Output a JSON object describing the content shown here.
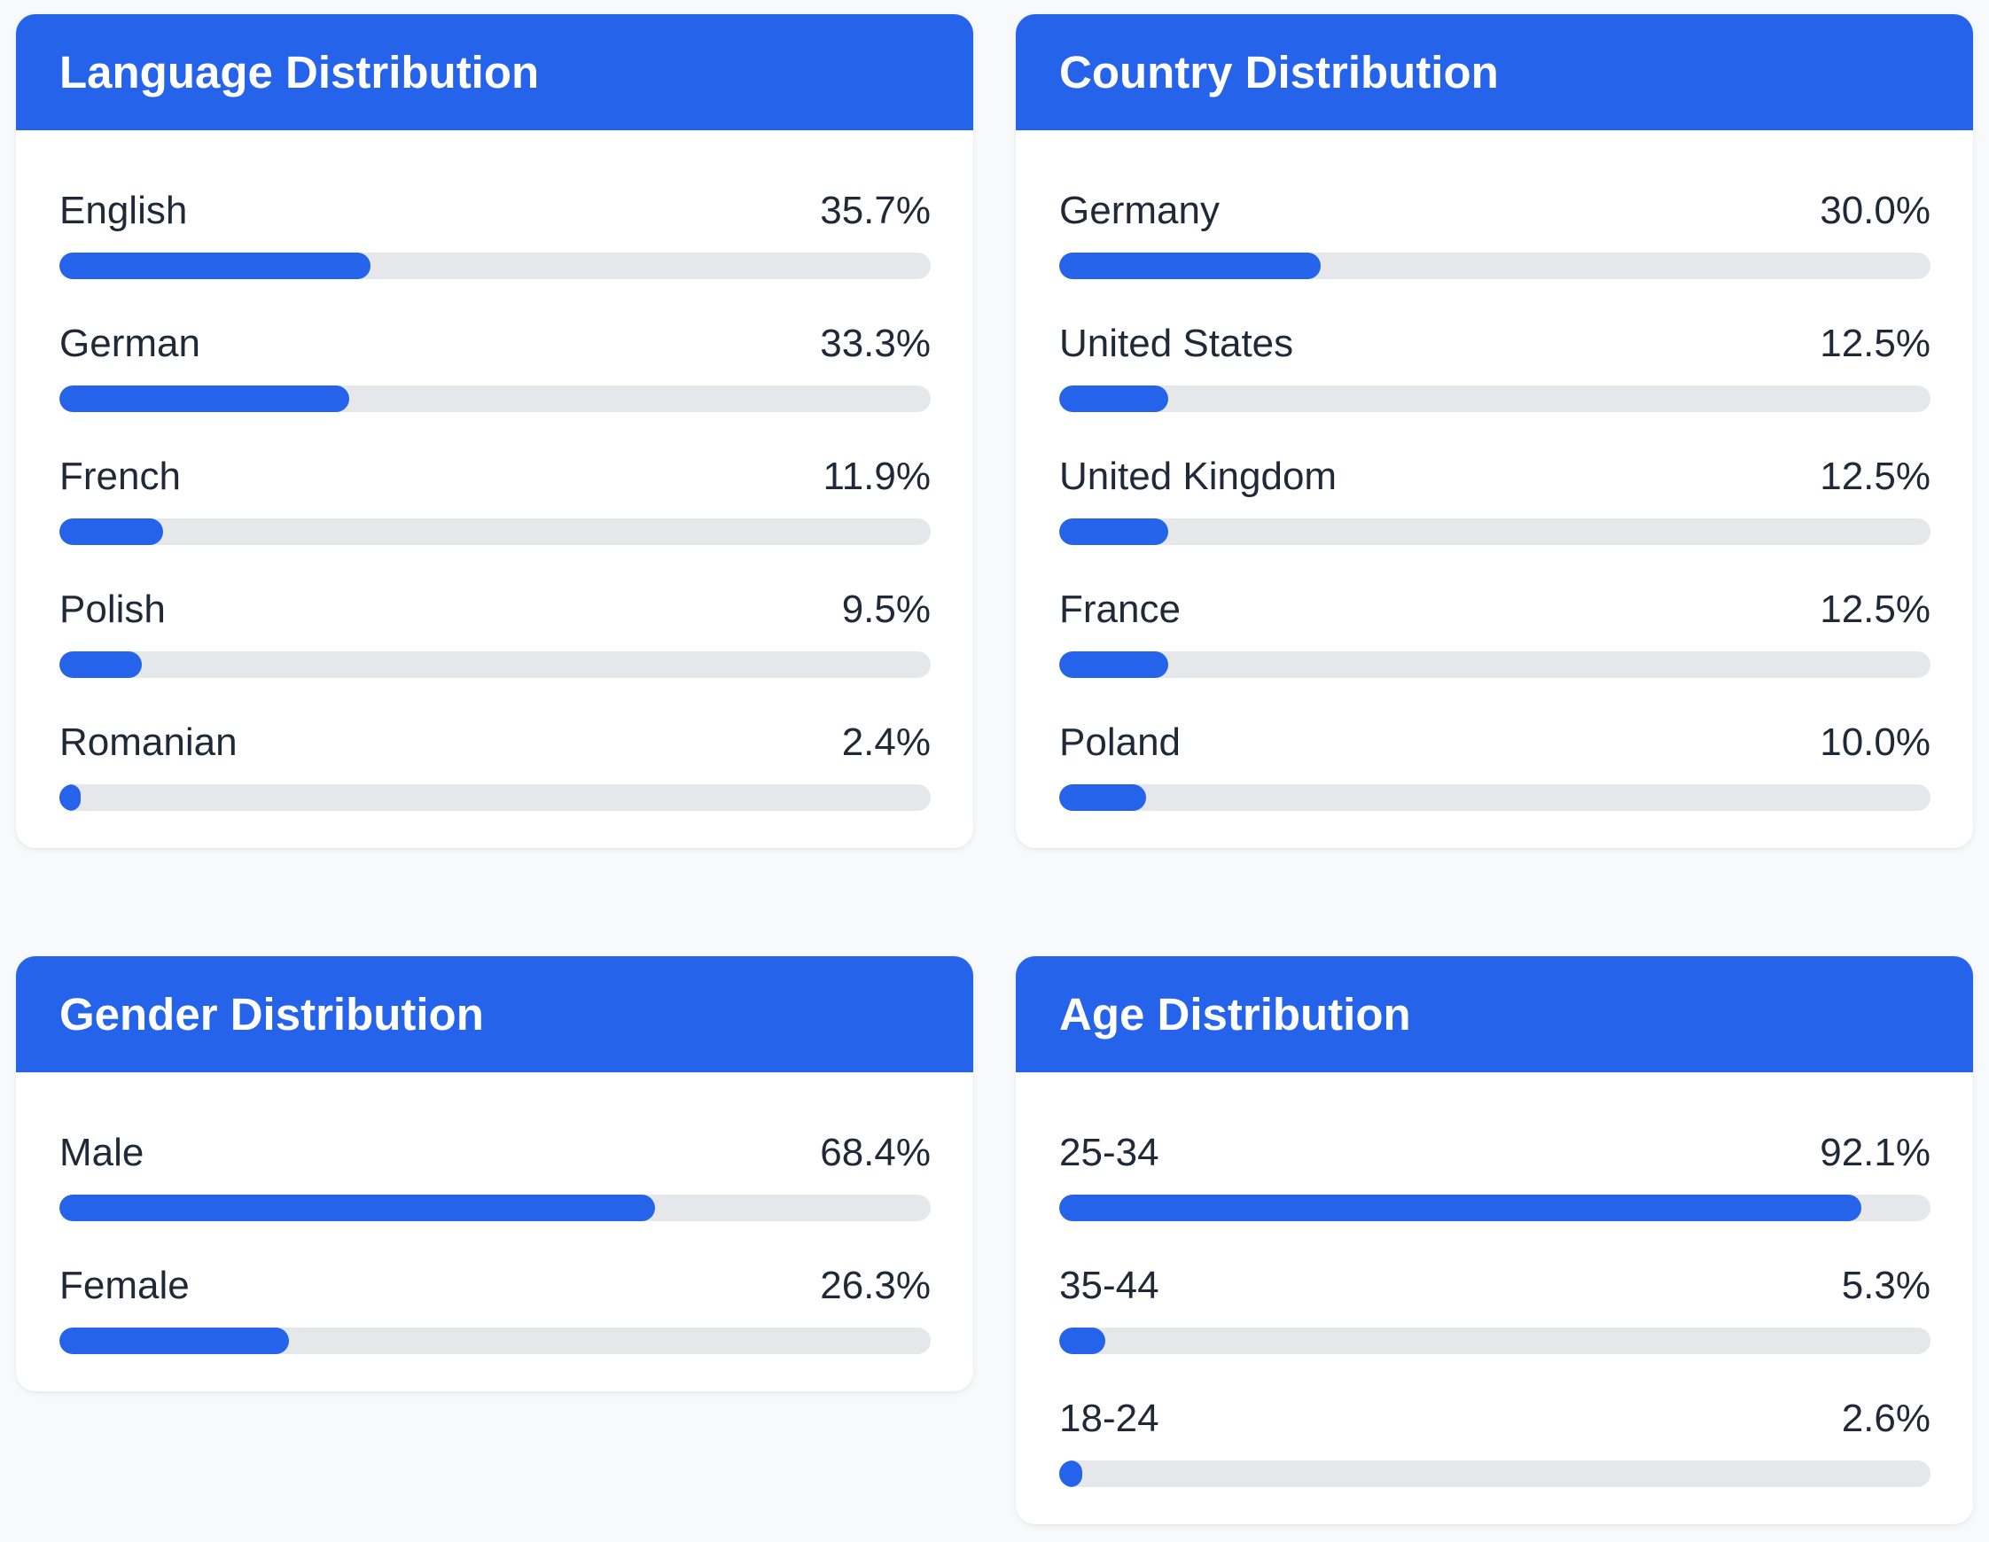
{
  "colors": {
    "accent": "#2563eb",
    "track": "#e5e7eb",
    "background": "#f8f9fb",
    "card": "#ffffff",
    "text": "#1f2937"
  },
  "cards": [
    {
      "id": "language",
      "title": "Language Distribution",
      "items": [
        {
          "label": "English",
          "value": "35.7%",
          "percent": 35.7
        },
        {
          "label": "German",
          "value": "33.3%",
          "percent": 33.3
        },
        {
          "label": "French",
          "value": "11.9%",
          "percent": 11.9
        },
        {
          "label": "Polish",
          "value": "9.5%",
          "percent": 9.5
        },
        {
          "label": "Romanian",
          "value": "2.4%",
          "percent": 2.4
        }
      ]
    },
    {
      "id": "country",
      "title": "Country Distribution",
      "items": [
        {
          "label": "Germany",
          "value": "30.0%",
          "percent": 30.0
        },
        {
          "label": "United States",
          "value": "12.5%",
          "percent": 12.5
        },
        {
          "label": "United Kingdom",
          "value": "12.5%",
          "percent": 12.5
        },
        {
          "label": "France",
          "value": "12.5%",
          "percent": 12.5
        },
        {
          "label": "Poland",
          "value": "10.0%",
          "percent": 10.0
        }
      ]
    },
    {
      "id": "gender",
      "title": "Gender Distribution",
      "items": [
        {
          "label": "Male",
          "value": "68.4%",
          "percent": 68.4
        },
        {
          "label": "Female",
          "value": "26.3%",
          "percent": 26.3
        }
      ]
    },
    {
      "id": "age",
      "title": "Age Distribution",
      "items": [
        {
          "label": "25-34",
          "value": "92.1%",
          "percent": 92.1
        },
        {
          "label": "35-44",
          "value": "5.3%",
          "percent": 5.3
        },
        {
          "label": "18-24",
          "value": "2.6%",
          "percent": 2.6
        }
      ]
    }
  ]
}
